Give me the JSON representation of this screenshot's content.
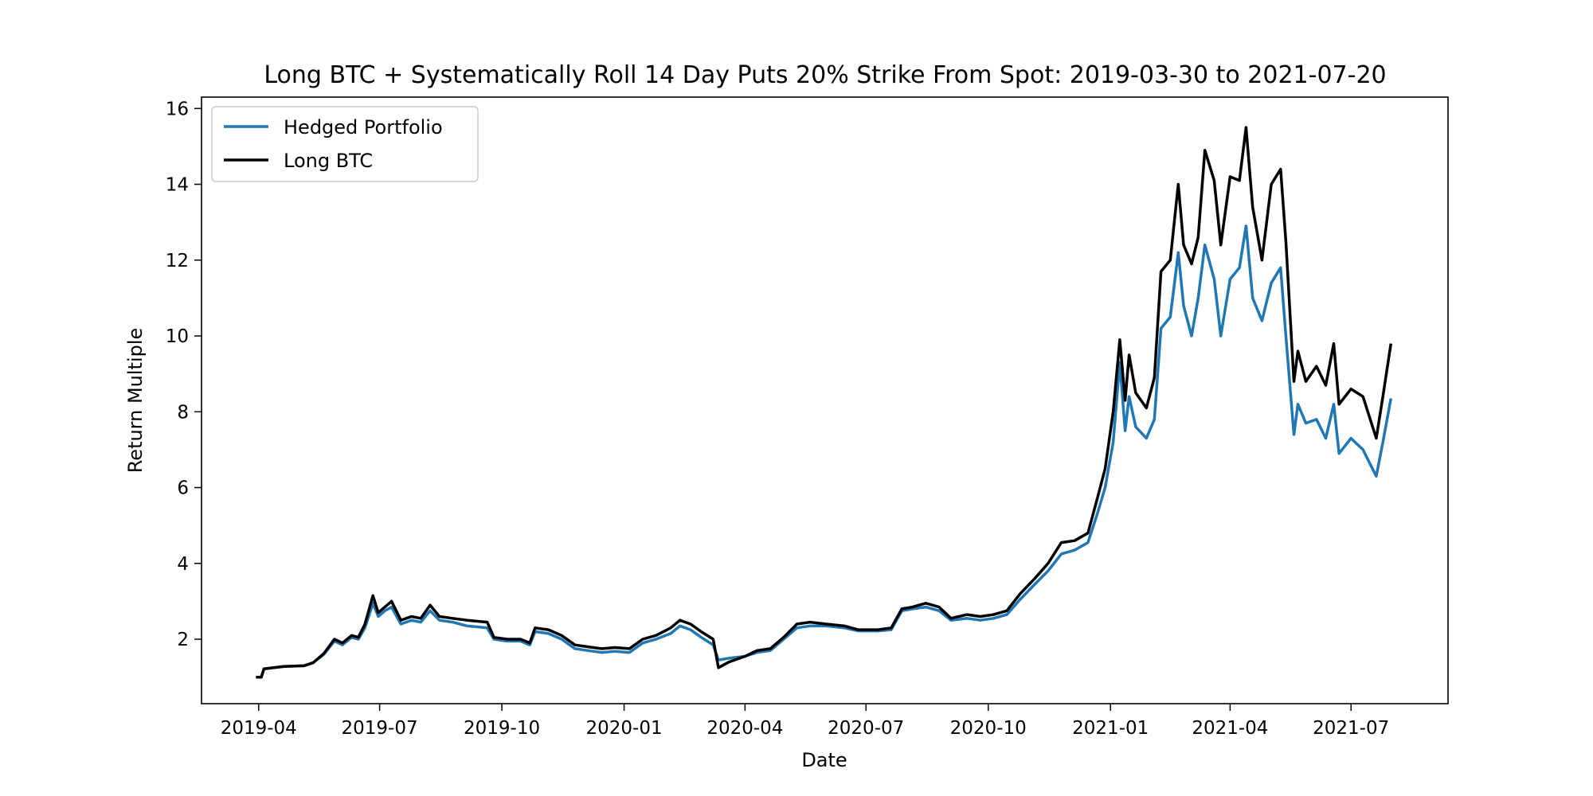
{
  "chart_data": {
    "type": "line",
    "title": "Long BTC + Systematically Roll 14 Day Puts 20% Strike From Spot: 2019-03-30 to 2021-07-20",
    "xlabel": "Date",
    "ylabel": "Return Multiple",
    "xlim": [
      "2019-02-17",
      "2021-09-12"
    ],
    "ylim": [
      0.3,
      16.3
    ],
    "x_ticks": [
      "2019-04",
      "2019-07",
      "2019-10",
      "2020-01",
      "2020-04",
      "2020-07",
      "2020-10",
      "2021-01",
      "2021-04",
      "2021-07"
    ],
    "y_ticks": [
      2,
      4,
      6,
      8,
      10,
      12,
      14,
      16
    ],
    "grid": false,
    "legend_position": "upper-left",
    "series": [
      {
        "name": "Hedged Portfolio",
        "color": "#1f77b4",
        "points": [
          [
            "2019-03-30",
            1.0
          ],
          [
            "2019-04-03",
            1.0
          ],
          [
            "2019-04-05",
            1.22
          ],
          [
            "2019-04-20",
            1.28
          ],
          [
            "2019-05-05",
            1.3
          ],
          [
            "2019-05-12",
            1.38
          ],
          [
            "2019-05-20",
            1.6
          ],
          [
            "2019-05-28",
            1.95
          ],
          [
            "2019-06-03",
            1.85
          ],
          [
            "2019-06-10",
            2.05
          ],
          [
            "2019-06-15",
            2.0
          ],
          [
            "2019-06-20",
            2.3
          ],
          [
            "2019-06-26",
            2.95
          ],
          [
            "2019-06-30",
            2.6
          ],
          [
            "2019-07-05",
            2.75
          ],
          [
            "2019-07-10",
            2.85
          ],
          [
            "2019-07-17",
            2.4
          ],
          [
            "2019-07-25",
            2.5
          ],
          [
            "2019-08-01",
            2.45
          ],
          [
            "2019-08-08",
            2.75
          ],
          [
            "2019-08-15",
            2.5
          ],
          [
            "2019-08-25",
            2.45
          ],
          [
            "2019-09-05",
            2.35
          ],
          [
            "2019-09-20",
            2.3
          ],
          [
            "2019-09-25",
            2.0
          ],
          [
            "2019-10-05",
            1.95
          ],
          [
            "2019-10-15",
            1.95
          ],
          [
            "2019-10-22",
            1.85
          ],
          [
            "2019-10-26",
            2.2
          ],
          [
            "2019-11-05",
            2.15
          ],
          [
            "2019-11-15",
            2.0
          ],
          [
            "2019-11-25",
            1.75
          ],
          [
            "2019-12-05",
            1.7
          ],
          [
            "2019-12-15",
            1.65
          ],
          [
            "2019-12-25",
            1.68
          ],
          [
            "2020-01-05",
            1.65
          ],
          [
            "2020-01-15",
            1.9
          ],
          [
            "2020-01-25",
            2.0
          ],
          [
            "2020-02-05",
            2.15
          ],
          [
            "2020-02-12",
            2.35
          ],
          [
            "2020-02-20",
            2.25
          ],
          [
            "2020-02-28",
            2.05
          ],
          [
            "2020-03-08",
            1.85
          ],
          [
            "2020-03-12",
            1.45
          ],
          [
            "2020-03-20",
            1.5
          ],
          [
            "2020-04-01",
            1.55
          ],
          [
            "2020-04-10",
            1.65
          ],
          [
            "2020-04-20",
            1.7
          ],
          [
            "2020-04-30",
            2.0
          ],
          [
            "2020-05-10",
            2.3
          ],
          [
            "2020-05-20",
            2.35
          ],
          [
            "2020-06-01",
            2.35
          ],
          [
            "2020-06-15",
            2.3
          ],
          [
            "2020-06-25",
            2.22
          ],
          [
            "2020-07-10",
            2.22
          ],
          [
            "2020-07-20",
            2.25
          ],
          [
            "2020-07-28",
            2.75
          ],
          [
            "2020-08-05",
            2.8
          ],
          [
            "2020-08-15",
            2.85
          ],
          [
            "2020-08-25",
            2.75
          ],
          [
            "2020-09-03",
            2.5
          ],
          [
            "2020-09-15",
            2.55
          ],
          [
            "2020-09-25",
            2.5
          ],
          [
            "2020-10-05",
            2.55
          ],
          [
            "2020-10-15",
            2.65
          ],
          [
            "2020-10-25",
            3.05
          ],
          [
            "2020-11-05",
            3.45
          ],
          [
            "2020-11-15",
            3.8
          ],
          [
            "2020-11-25",
            4.25
          ],
          [
            "2020-12-05",
            4.35
          ],
          [
            "2020-12-15",
            4.55
          ],
          [
            "2020-12-22",
            5.3
          ],
          [
            "2020-12-28",
            6.0
          ],
          [
            "2021-01-03",
            7.2
          ],
          [
            "2021-01-08",
            9.3
          ],
          [
            "2021-01-12",
            7.5
          ],
          [
            "2021-01-15",
            8.4
          ],
          [
            "2021-01-20",
            7.6
          ],
          [
            "2021-01-28",
            7.3
          ],
          [
            "2021-02-03",
            7.8
          ],
          [
            "2021-02-08",
            10.2
          ],
          [
            "2021-02-15",
            10.5
          ],
          [
            "2021-02-21",
            12.2
          ],
          [
            "2021-02-25",
            10.8
          ],
          [
            "2021-03-03",
            10.0
          ],
          [
            "2021-03-08",
            11.0
          ],
          [
            "2021-03-13",
            12.4
          ],
          [
            "2021-03-20",
            11.5
          ],
          [
            "2021-03-25",
            10.0
          ],
          [
            "2021-04-01",
            11.5
          ],
          [
            "2021-04-08",
            11.8
          ],
          [
            "2021-04-13",
            12.9
          ],
          [
            "2021-04-18",
            11.0
          ],
          [
            "2021-04-25",
            10.4
          ],
          [
            "2021-05-02",
            11.4
          ],
          [
            "2021-05-09",
            11.8
          ],
          [
            "2021-05-13",
            10.0
          ],
          [
            "2021-05-19",
            7.4
          ],
          [
            "2021-05-22",
            8.2
          ],
          [
            "2021-05-28",
            7.7
          ],
          [
            "2021-06-05",
            7.8
          ],
          [
            "2021-06-12",
            7.3
          ],
          [
            "2021-06-18",
            8.2
          ],
          [
            "2021-06-22",
            6.9
          ],
          [
            "2021-07-01",
            7.3
          ],
          [
            "2021-07-10",
            7.0
          ],
          [
            "2021-07-20",
            6.3
          ],
          [
            "2021-07-25",
            7.2
          ],
          [
            "2021-07-31",
            8.35
          ]
        ]
      },
      {
        "name": "Long BTC",
        "color": "#000000",
        "points": [
          [
            "2019-03-30",
            1.0
          ],
          [
            "2019-04-03",
            1.0
          ],
          [
            "2019-04-05",
            1.22
          ],
          [
            "2019-04-20",
            1.28
          ],
          [
            "2019-05-05",
            1.3
          ],
          [
            "2019-05-12",
            1.38
          ],
          [
            "2019-05-20",
            1.62
          ],
          [
            "2019-05-28",
            2.0
          ],
          [
            "2019-06-03",
            1.9
          ],
          [
            "2019-06-10",
            2.1
          ],
          [
            "2019-06-15",
            2.05
          ],
          [
            "2019-06-20",
            2.4
          ],
          [
            "2019-06-26",
            3.15
          ],
          [
            "2019-06-30",
            2.7
          ],
          [
            "2019-07-05",
            2.85
          ],
          [
            "2019-07-10",
            3.0
          ],
          [
            "2019-07-17",
            2.5
          ],
          [
            "2019-07-25",
            2.6
          ],
          [
            "2019-08-01",
            2.55
          ],
          [
            "2019-08-08",
            2.9
          ],
          [
            "2019-08-15",
            2.6
          ],
          [
            "2019-08-25",
            2.55
          ],
          [
            "2019-09-05",
            2.5
          ],
          [
            "2019-09-20",
            2.45
          ],
          [
            "2019-09-25",
            2.05
          ],
          [
            "2019-10-05",
            2.0
          ],
          [
            "2019-10-15",
            2.0
          ],
          [
            "2019-10-22",
            1.9
          ],
          [
            "2019-10-26",
            2.3
          ],
          [
            "2019-11-05",
            2.25
          ],
          [
            "2019-11-15",
            2.1
          ],
          [
            "2019-11-25",
            1.85
          ],
          [
            "2019-12-05",
            1.8
          ],
          [
            "2019-12-15",
            1.75
          ],
          [
            "2019-12-25",
            1.78
          ],
          [
            "2020-01-05",
            1.75
          ],
          [
            "2020-01-15",
            2.0
          ],
          [
            "2020-01-25",
            2.1
          ],
          [
            "2020-02-05",
            2.3
          ],
          [
            "2020-02-12",
            2.5
          ],
          [
            "2020-02-20",
            2.4
          ],
          [
            "2020-02-28",
            2.2
          ],
          [
            "2020-03-08",
            2.0
          ],
          [
            "2020-03-12",
            1.25
          ],
          [
            "2020-03-20",
            1.4
          ],
          [
            "2020-04-01",
            1.55
          ],
          [
            "2020-04-10",
            1.7
          ],
          [
            "2020-04-20",
            1.75
          ],
          [
            "2020-04-30",
            2.05
          ],
          [
            "2020-05-10",
            2.4
          ],
          [
            "2020-05-20",
            2.45
          ],
          [
            "2020-06-01",
            2.4
          ],
          [
            "2020-06-15",
            2.35
          ],
          [
            "2020-06-25",
            2.25
          ],
          [
            "2020-07-10",
            2.25
          ],
          [
            "2020-07-20",
            2.3
          ],
          [
            "2020-07-28",
            2.8
          ],
          [
            "2020-08-05",
            2.85
          ],
          [
            "2020-08-15",
            2.95
          ],
          [
            "2020-08-25",
            2.85
          ],
          [
            "2020-09-03",
            2.55
          ],
          [
            "2020-09-15",
            2.65
          ],
          [
            "2020-09-25",
            2.6
          ],
          [
            "2020-10-05",
            2.65
          ],
          [
            "2020-10-15",
            2.75
          ],
          [
            "2020-10-25",
            3.2
          ],
          [
            "2020-11-05",
            3.6
          ],
          [
            "2020-11-15",
            4.0
          ],
          [
            "2020-11-25",
            4.55
          ],
          [
            "2020-12-05",
            4.6
          ],
          [
            "2020-12-15",
            4.8
          ],
          [
            "2020-12-22",
            5.7
          ],
          [
            "2020-12-28",
            6.5
          ],
          [
            "2021-01-03",
            8.0
          ],
          [
            "2021-01-08",
            9.9
          ],
          [
            "2021-01-12",
            8.3
          ],
          [
            "2021-01-15",
            9.5
          ],
          [
            "2021-01-20",
            8.5
          ],
          [
            "2021-01-28",
            8.1
          ],
          [
            "2021-02-03",
            8.9
          ],
          [
            "2021-02-08",
            11.7
          ],
          [
            "2021-02-15",
            12.0
          ],
          [
            "2021-02-21",
            14.0
          ],
          [
            "2021-02-25",
            12.4
          ],
          [
            "2021-03-03",
            11.9
          ],
          [
            "2021-03-08",
            12.6
          ],
          [
            "2021-03-13",
            14.9
          ],
          [
            "2021-03-20",
            14.1
          ],
          [
            "2021-03-25",
            12.4
          ],
          [
            "2021-04-01",
            14.2
          ],
          [
            "2021-04-08",
            14.1
          ],
          [
            "2021-04-13",
            15.5
          ],
          [
            "2021-04-18",
            13.4
          ],
          [
            "2021-04-25",
            12.0
          ],
          [
            "2021-05-02",
            14.0
          ],
          [
            "2021-05-09",
            14.4
          ],
          [
            "2021-05-13",
            12.5
          ],
          [
            "2021-05-19",
            8.8
          ],
          [
            "2021-05-22",
            9.6
          ],
          [
            "2021-05-28",
            8.8
          ],
          [
            "2021-06-05",
            9.2
          ],
          [
            "2021-06-12",
            8.7
          ],
          [
            "2021-06-18",
            9.8
          ],
          [
            "2021-06-22",
            8.2
          ],
          [
            "2021-07-01",
            8.6
          ],
          [
            "2021-07-10",
            8.4
          ],
          [
            "2021-07-20",
            7.3
          ],
          [
            "2021-07-25",
            8.4
          ],
          [
            "2021-07-31",
            9.8
          ]
        ]
      }
    ]
  }
}
